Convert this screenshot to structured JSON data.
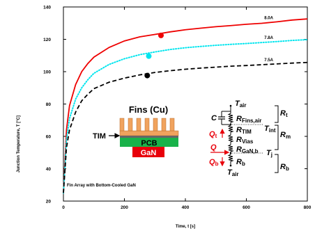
{
  "chart_data": {
    "type": "line",
    "title": "",
    "xlabel": "Time, t [s]",
    "ylabel": "Junction Temperature, T [°C]",
    "xlim": [
      0,
      800
    ],
    "ylim": [
      20,
      140
    ],
    "xticks": [
      0,
      200,
      400,
      600,
      800
    ],
    "yticks": [
      20,
      40,
      60,
      80,
      100,
      120,
      140
    ],
    "grid": false,
    "x": [
      0,
      10,
      20,
      40,
      60,
      80,
      100,
      150,
      200,
      250,
      300,
      350,
      400,
      450,
      500,
      550,
      600,
      650,
      700,
      750,
      800
    ],
    "series": [
      {
        "name": "8.0A",
        "color": "#ee0000",
        "style": "solid",
        "values": [
          25,
          64,
          79,
          92,
          100,
          105,
          109,
          115,
          119,
          121.5,
          123,
          124.6,
          125.9,
          126.9,
          127.8,
          128.5,
          129.3,
          129.9,
          130.8,
          131.9,
          132.6
        ]
      },
      {
        "name": "7.8A",
        "color": "#00e5ee",
        "style": "dotted",
        "values": [
          25,
          58,
          71,
          83,
          90,
          95,
          99,
          104.5,
          108,
          110.5,
          112.2,
          113.7,
          114.8,
          115.6,
          116.3,
          116.9,
          117.4,
          118,
          118.6,
          119.3,
          119.8
        ]
      },
      {
        "name": "7.5A",
        "color": "#000000",
        "style": "dashed",
        "values": [
          25,
          53,
          64,
          75,
          82,
          86,
          89.5,
          93.5,
          96,
          98,
          99.5,
          100.6,
          101.5,
          102.2,
          102.8,
          103.4,
          103.8,
          104.3,
          104.8,
          105.3,
          105.7
        ]
      }
    ],
    "markers": [
      {
        "series": "8.0A",
        "x": 320,
        "y": 122.4
      },
      {
        "series": "7.8A",
        "x": 280,
        "y": 109.6
      },
      {
        "series": "7.5A",
        "x": 275,
        "y": 97.6
      }
    ],
    "annotations": {
      "corner_text": "Fin Array with Bottom-Cooled GaN",
      "stack": {
        "fins": "Fins (Cu)",
        "tim": "TIM",
        "pcb": "PCB",
        "gan": "GaN"
      },
      "network": {
        "cap": "C",
        "r_fins": "Fins,air",
        "r_tim": "TIM",
        "r_vias": "Vias",
        "r_gan": "GaN,b",
        "r_b": "b",
        "t_air_top": "air",
        "t_air_bottom": "air",
        "t_int": "int",
        "t_j": "j",
        "q": "Q",
        "q_t": "t",
        "q_b": "b",
        "brace_t": "t",
        "brace_m": "m",
        "brace_b": "b"
      }
    }
  }
}
